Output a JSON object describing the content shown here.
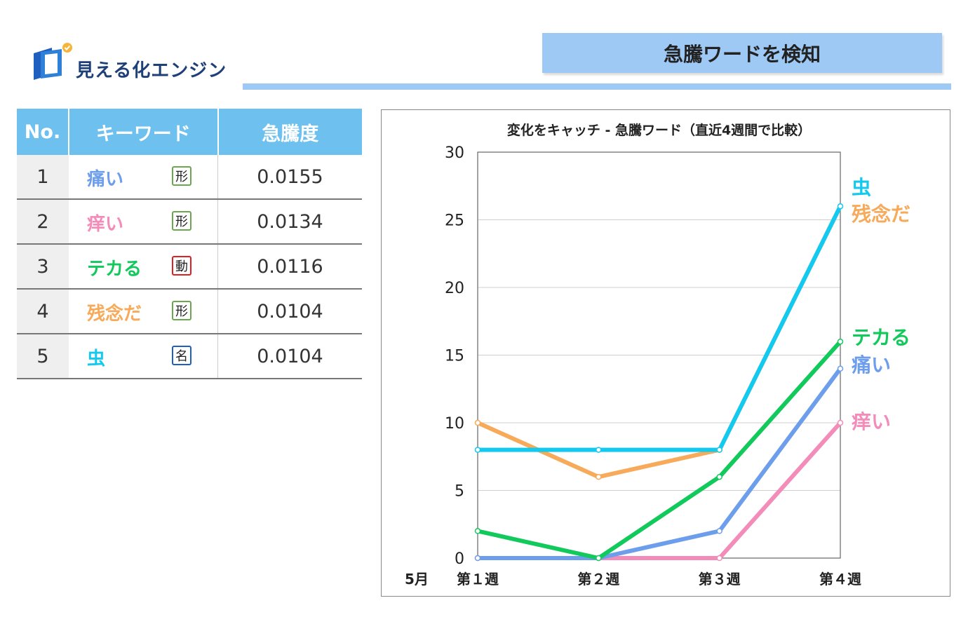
{
  "logo": {
    "text": "見える化エンジン",
    "icon": "logo-icon"
  },
  "header": {
    "title": "急騰ワードを検知"
  },
  "table": {
    "headers": [
      "No.",
      "キーワード",
      "急騰度"
    ],
    "rows": [
      {
        "no": "1",
        "keyword": "痛い",
        "pos": "形",
        "value": "0.0155",
        "color": "#6d9eeb",
        "pos_color": "#6aa84f"
      },
      {
        "no": "2",
        "keyword": "痒い",
        "pos": "形",
        "value": "0.0134",
        "color": "#f48cba",
        "pos_color": "#6aa84f"
      },
      {
        "no": "3",
        "keyword": "テカる",
        "pos": "動",
        "value": "0.0116",
        "color": "#12c95c",
        "pos_color": "#e02020"
      },
      {
        "no": "4",
        "keyword": "残念だ",
        "pos": "形",
        "value": "0.0104",
        "color": "#f6aa5a",
        "pos_color": "#6aa84f"
      },
      {
        "no": "5",
        "keyword": "虫",
        "pos": "名",
        "value": "0.0104",
        "color": "#12c9f0",
        "pos_color": "#1f5fbf"
      }
    ]
  },
  "chart_data": {
    "type": "line",
    "title": "変化をキャッチ - 急騰ワード（直近4週間で比較）",
    "x_prefix": "5月",
    "categories": [
      "第１週",
      "第２週",
      "第３週",
      "第４週"
    ],
    "ylim": [
      0,
      30
    ],
    "yticks": [
      0,
      5,
      10,
      15,
      20,
      25,
      30
    ],
    "grid": true,
    "series": [
      {
        "name": "虫",
        "color": "#12c9f0",
        "values": [
          8,
          8,
          8,
          26
        ]
      },
      {
        "name": "残念だ",
        "color": "#f6aa5a",
        "values": [
          10,
          6,
          8,
          26
        ]
      },
      {
        "name": "テカる",
        "color": "#12c95c",
        "values": [
          2,
          0,
          6,
          16
        ]
      },
      {
        "name": "痛い",
        "color": "#6d9eeb",
        "values": [
          0,
          0,
          2,
          14
        ]
      },
      {
        "name": "痒い",
        "color": "#f48cba",
        "values": [
          0,
          0,
          0,
          10
        ]
      }
    ]
  }
}
